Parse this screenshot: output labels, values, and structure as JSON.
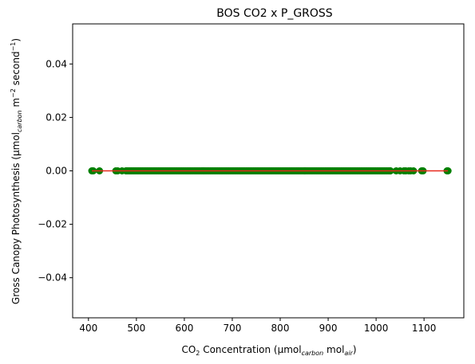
{
  "chart_data": {
    "type": "scatter",
    "title": "BOS CO2 x P_GROSS",
    "xlabel": {
      "co2_prefix": "CO",
      "co2_sub": "2",
      "main": " Concentration (µmol",
      "carbon_sub": "carbon",
      "mol": " mol",
      "air_sub": "air",
      "close": ")"
    },
    "ylabel": {
      "main": "Gross Canopy Photosynthesis (µmol",
      "carbon_sub": "carbon",
      "rest": " m",
      "m_sup": "−2",
      "second": " second",
      "second_sup": "−1",
      "close": ")"
    },
    "xlim": [
      367,
      1183
    ],
    "ylim": [
      -0.055,
      0.055
    ],
    "x_ticks": [
      400,
      500,
      600,
      700,
      800,
      900,
      1000,
      1100
    ],
    "y_ticks": [
      -0.04,
      -0.02,
      0.0,
      0.02,
      0.04
    ],
    "y_tick_labels": [
      "−0.04",
      "−0.02",
      "0.00",
      "0.02",
      "0.04"
    ],
    "points": {
      "x": [
        407,
        410,
        423,
        457,
        461,
        470,
        478,
        1030,
        1042,
        1050,
        1058,
        1062,
        1068,
        1072,
        1078,
        1095,
        1098,
        1148,
        1150
      ],
      "dense_range": [
        480,
        1030
      ],
      "y": 0.0
    },
    "fit_line": {
      "x": [
        407,
        1150
      ],
      "y": [
        0.0,
        0.0
      ]
    },
    "grid": false,
    "colors": {
      "points": "#008000",
      "fit_line": "#e8291f",
      "axis": "#000000"
    }
  }
}
